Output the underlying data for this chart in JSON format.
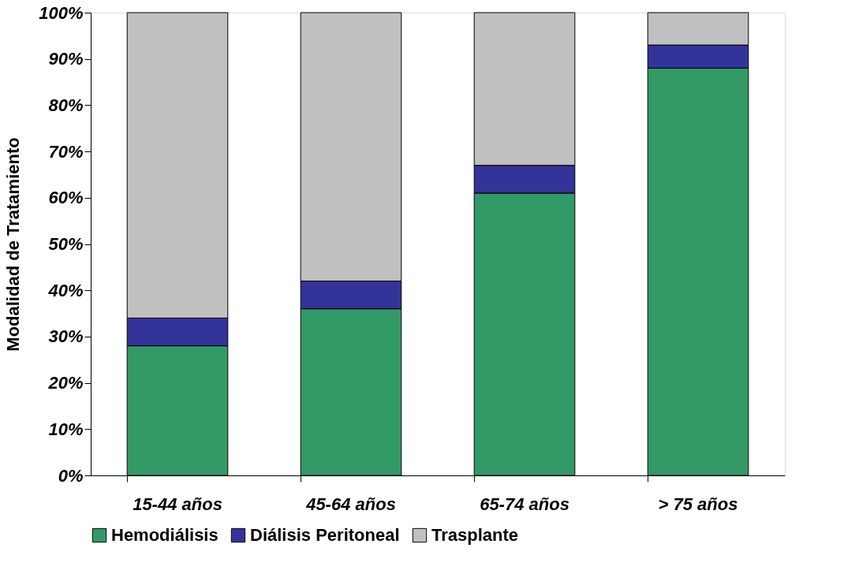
{
  "chart_data": {
    "type": "bar",
    "stacked": true,
    "ylabel": "Modalidad de Tratamiento",
    "categories": [
      "15-44 años",
      "45-64 años",
      "65-74 años",
      "> 75 años"
    ],
    "series": [
      {
        "name": "Hemodiálisis",
        "color": "#339966",
        "values": [
          28,
          36,
          61,
          88
        ]
      },
      {
        "name": "Diálisis Peritoneal",
        "color": "#333399",
        "values": [
          6,
          6,
          6,
          5
        ]
      },
      {
        "name": "Trasplante",
        "color": "#c0c0c0",
        "values": [
          66,
          58,
          33,
          7
        ]
      }
    ],
    "ylim": [
      0,
      100
    ],
    "yticks": [
      {
        "value": 0,
        "label": "0%"
      },
      {
        "value": 10,
        "label": "10%"
      },
      {
        "value": 20,
        "label": "20%"
      },
      {
        "value": 30,
        "label": "30%"
      },
      {
        "value": 40,
        "label": "40%"
      },
      {
        "value": 50,
        "label": "50%"
      },
      {
        "value": 60,
        "label": "60%"
      },
      {
        "value": 70,
        "label": "70%"
      },
      {
        "value": 80,
        "label": "80%"
      },
      {
        "value": 90,
        "label": "90%"
      },
      {
        "value": 100,
        "label": "100%"
      }
    ],
    "grid": false,
    "legend": "bottom"
  }
}
